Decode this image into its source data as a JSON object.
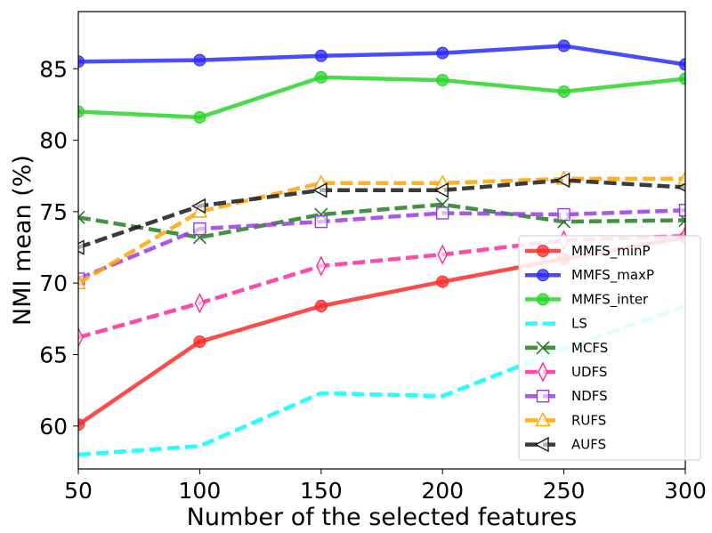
{
  "chart_data": {
    "type": "line",
    "title": "",
    "xlabel": "Number of the selected features",
    "ylabel": "NMI mean (%)",
    "x": [
      50,
      100,
      150,
      200,
      250,
      300
    ],
    "x_ticks": [
      "50",
      "100",
      "150",
      "200",
      "250",
      "300"
    ],
    "y_ticks": [
      "60",
      "65",
      "70",
      "75",
      "80",
      "85"
    ],
    "xlim": [
      50,
      300
    ],
    "ylim": [
      57,
      89
    ],
    "grid": false,
    "legend_position": "lower-right",
    "series": [
      {
        "name": "MMFS_minP",
        "values": [
          60.1,
          65.9,
          68.4,
          70.1,
          71.7,
          73.2
        ],
        "color": "#ff2a2a",
        "dash": "solid",
        "marker": "circle-filled"
      },
      {
        "name": "MMFS_maxP",
        "values": [
          85.5,
          85.6,
          85.9,
          86.1,
          86.6,
          85.3
        ],
        "color": "#2a2aff",
        "dash": "solid",
        "marker": "circle-filled"
      },
      {
        "name": "MMFS_inter",
        "values": [
          82.0,
          81.6,
          84.4,
          84.2,
          83.4,
          84.3
        ],
        "color": "#2ad42a",
        "dash": "solid",
        "marker": "circle-filled"
      },
      {
        "name": "LS",
        "values": [
          58.0,
          58.6,
          62.3,
          62.1,
          65.4,
          68.4
        ],
        "color": "#00ffff",
        "dash": "dashed",
        "marker": "none"
      },
      {
        "name": "MCFS",
        "values": [
          74.6,
          73.2,
          74.8,
          75.5,
          74.3,
          74.4
        ],
        "color": "#208020",
        "dash": "dashed",
        "marker": "x"
      },
      {
        "name": "UDFS",
        "values": [
          66.2,
          68.6,
          71.2,
          72.0,
          73.0,
          73.3
        ],
        "color": "#ff2a9a",
        "dash": "dashed",
        "marker": "thin-diamond"
      },
      {
        "name": "NDFS",
        "values": [
          70.3,
          73.8,
          74.3,
          74.9,
          74.8,
          75.1
        ],
        "color": "#9a3ce6",
        "dash": "dashed",
        "marker": "square"
      },
      {
        "name": "RUFS",
        "values": [
          70.0,
          75.0,
          77.0,
          77.0,
          77.3,
          77.3
        ],
        "color": "#ffa500",
        "dash": "dashed",
        "marker": "triangle-up"
      },
      {
        "name": "AUFS",
        "values": [
          72.5,
          75.4,
          76.5,
          76.5,
          77.2,
          76.7
        ],
        "color": "#1a1a1a",
        "dash": "dashed",
        "marker": "triangle-left"
      }
    ]
  }
}
